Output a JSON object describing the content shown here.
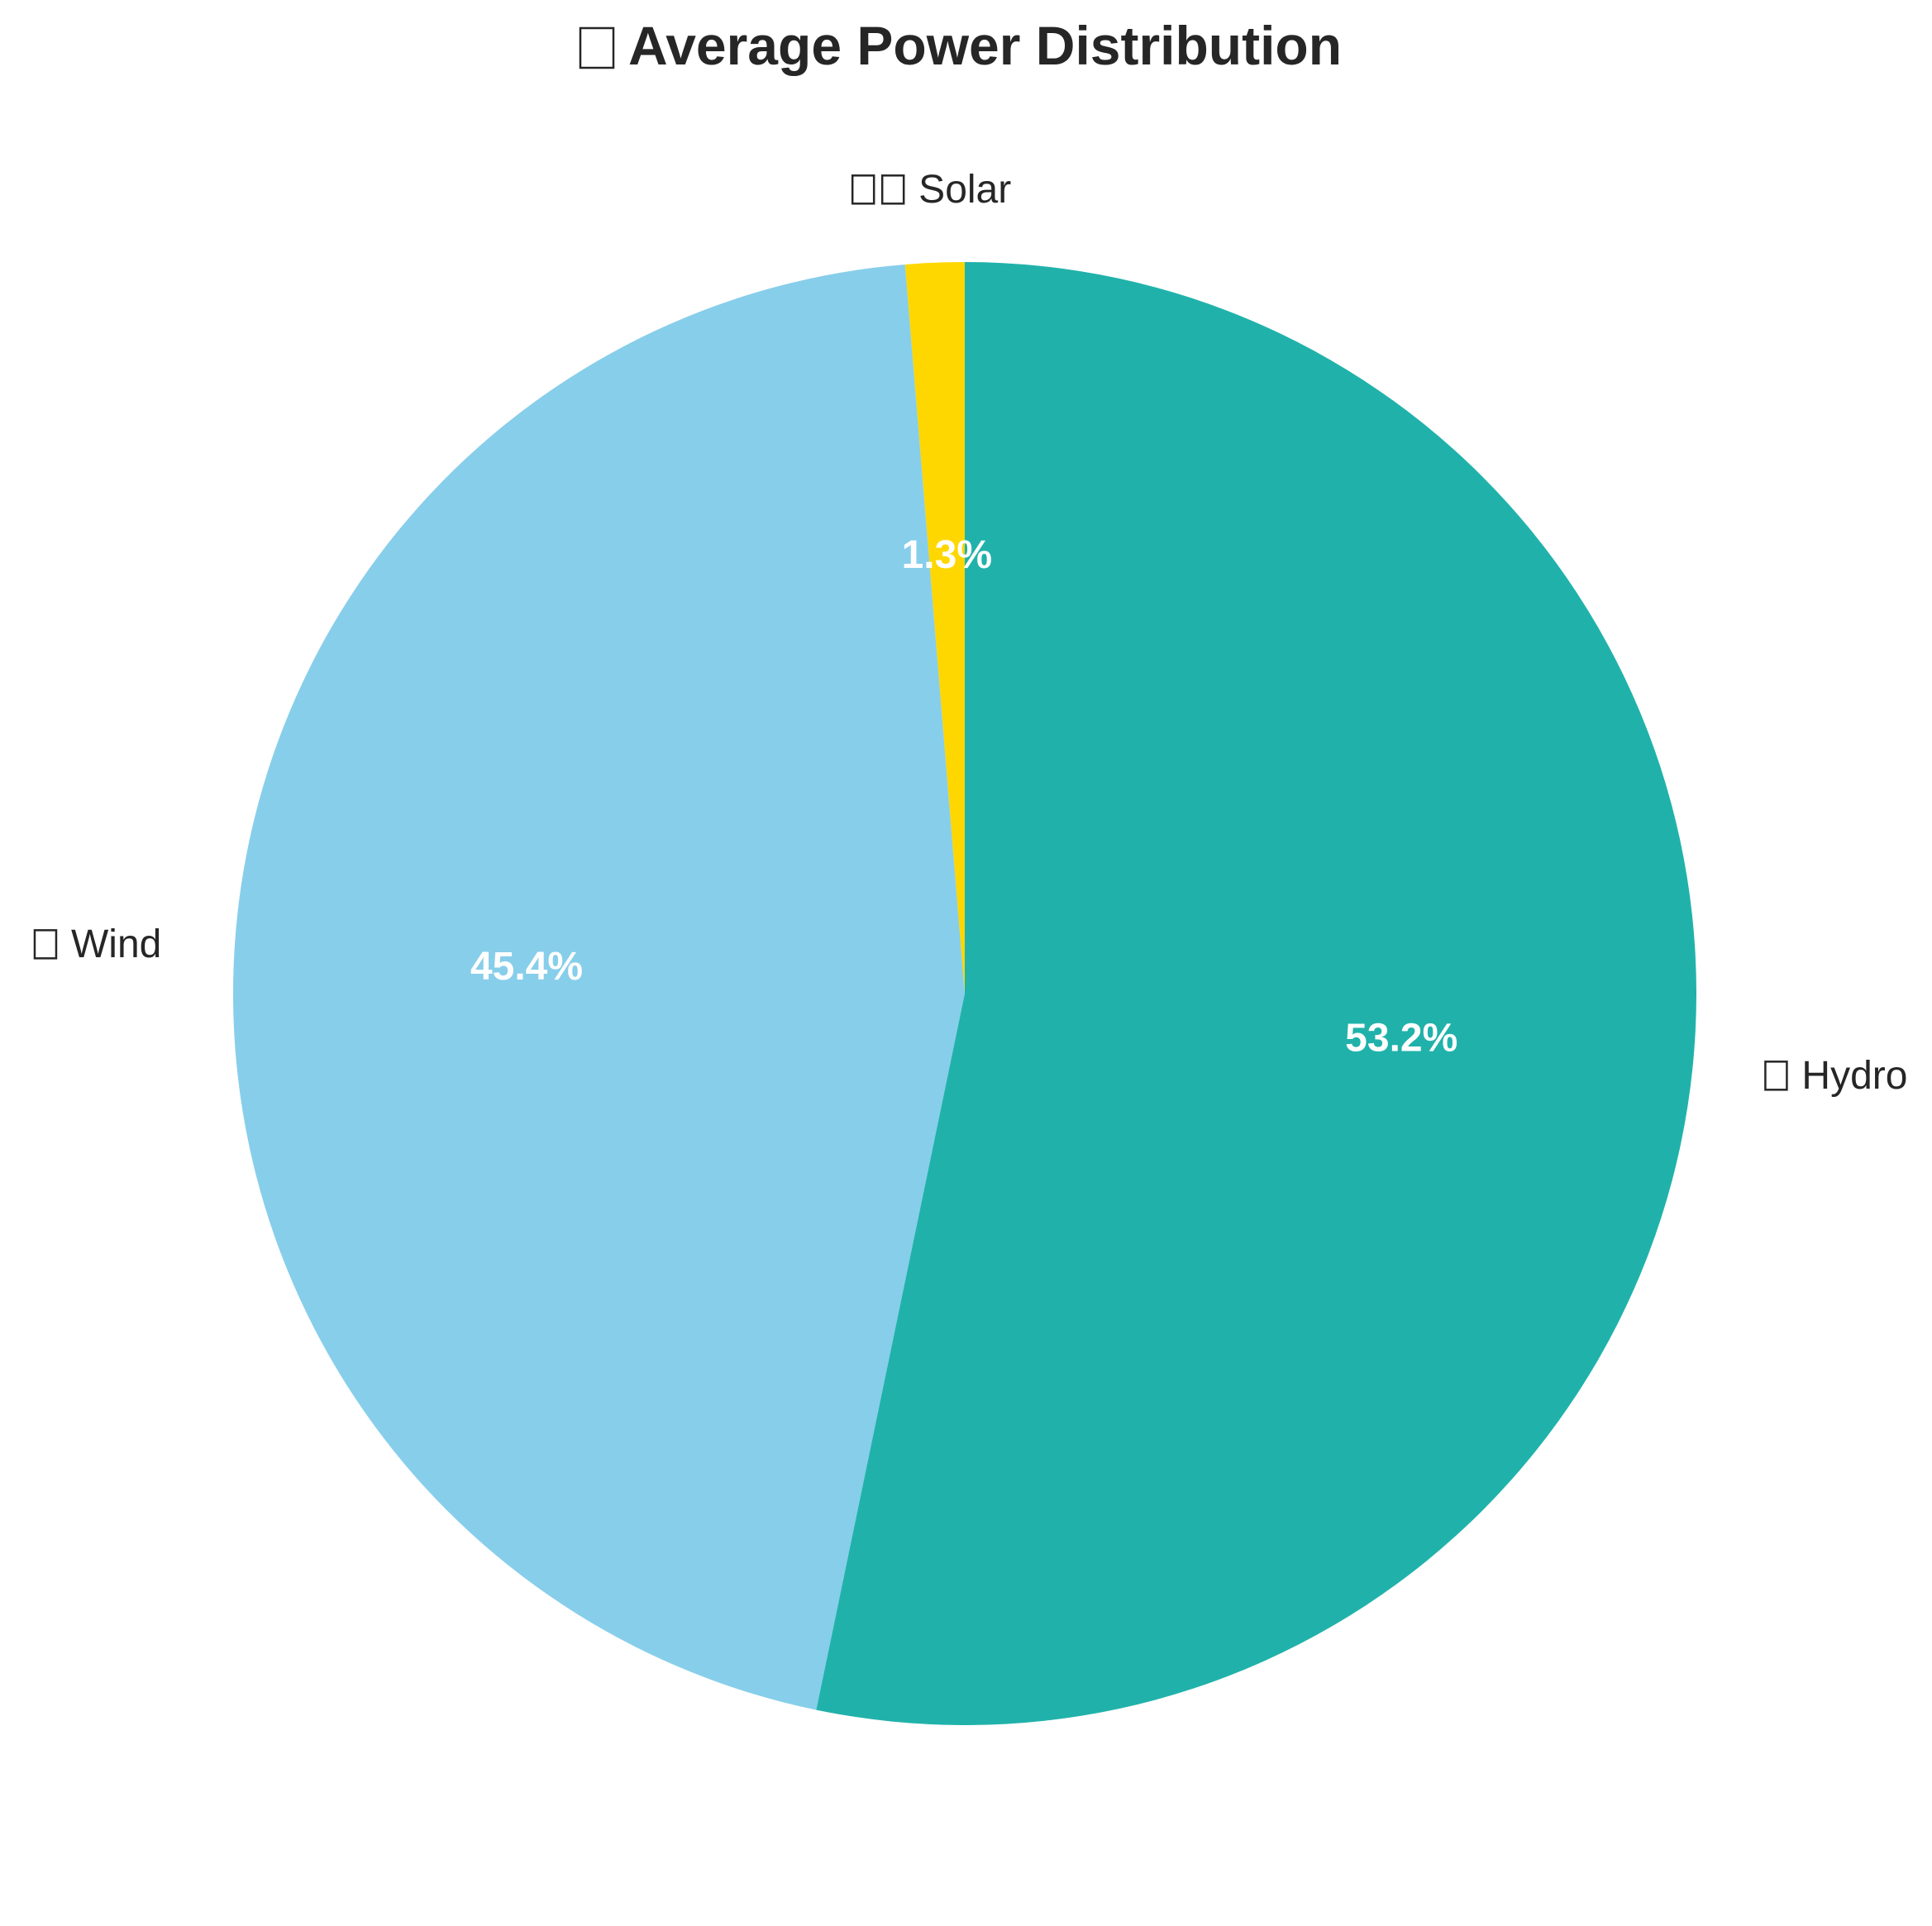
{
  "chart_data": {
    "type": "pie",
    "title": "Average Power Distribution",
    "slices": [
      {
        "label": "Solar",
        "value": 1.3,
        "pct_label": "1.3%",
        "color": "#FFD700",
        "icon_count": 2
      },
      {
        "label": "Wind",
        "value": 45.4,
        "pct_label": "45.4%",
        "color": "#87CEEB",
        "icon_count": 1
      },
      {
        "label": "Hydro",
        "value": 53.2,
        "pct_label": "53.2%",
        "color": "#20B2AA",
        "icon_count": 1
      }
    ],
    "start_angle_deg": 90,
    "direction": "clockwise-from-top-reversed",
    "legend": "none"
  }
}
